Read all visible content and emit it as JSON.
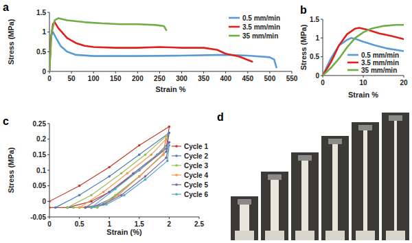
{
  "chart_data": [
    {
      "type": "line",
      "title": "a",
      "x_label": "Strain %",
      "y_label": "Stress (MPa)",
      "xlim": [
        0,
        550
      ],
      "ylim": [
        0,
        1.5
      ],
      "xticks": [
        0,
        50,
        100,
        150,
        200,
        250,
        300,
        350,
        400,
        450,
        500,
        550
      ],
      "yticks": [
        0,
        0.5,
        1,
        1.5
      ],
      "legend": "upper right",
      "series": [
        {
          "name": "0.5 mm/min",
          "color": "#5b9bd5",
          "x": [
            0,
            3,
            8,
            15,
            25,
            40,
            60,
            100,
            200,
            300,
            400,
            450,
            500,
            510,
            515
          ],
          "values": [
            0,
            0.9,
            1.0,
            0.85,
            0.65,
            0.5,
            0.42,
            0.39,
            0.39,
            0.4,
            0.42,
            0.4,
            0.36,
            0.3,
            0.1
          ]
        },
        {
          "name": "3.5 mm/min",
          "color": "#e0201b",
          "x": [
            0,
            3,
            8,
            12,
            20,
            40,
            60,
            80,
            100,
            150,
            200,
            250,
            300,
            350,
            380,
            400,
            430,
            460
          ],
          "values": [
            0,
            0.8,
            1.2,
            1.25,
            1.1,
            0.85,
            0.72,
            0.65,
            0.62,
            0.6,
            0.6,
            0.62,
            0.6,
            0.6,
            0.55,
            0.45,
            0.38,
            0.25
          ]
        },
        {
          "name": "35 mm/min",
          "color": "#70ad47",
          "x": [
            0,
            5,
            12,
            20,
            40,
            80,
            120,
            160,
            200,
            240,
            260,
            265
          ],
          "values": [
            0,
            1.0,
            1.3,
            1.35,
            1.3,
            1.25,
            1.22,
            1.2,
            1.2,
            1.18,
            1.15,
            1.05
          ]
        }
      ]
    },
    {
      "type": "line",
      "title": "b",
      "x_label": "Strain %",
      "y_label": "Stress (MPa)",
      "xlim": [
        0,
        20
      ],
      "ylim": [
        0,
        1.5
      ],
      "xticks": [
        0,
        10,
        20
      ],
      "yticks": [
        0,
        0.5,
        1,
        1.5
      ],
      "legend": "lower right",
      "series": [
        {
          "name": "0.5 mm/min",
          "color": "#5b9bd5",
          "x": [
            0,
            2,
            4,
            6,
            7,
            8,
            10,
            13,
            16,
            20
          ],
          "values": [
            0,
            0.45,
            0.8,
            0.95,
            1.0,
            0.98,
            0.9,
            0.8,
            0.72,
            0.65
          ]
        },
        {
          "name": "3.5 mm/min",
          "color": "#e0201b",
          "x": [
            0,
            2,
            4,
            6,
            8,
            9,
            11,
            14,
            17,
            20
          ],
          "values": [
            0,
            0.35,
            0.8,
            1.1,
            1.25,
            1.27,
            1.22,
            1.12,
            1.05,
            0.97
          ]
        },
        {
          "name": "35 mm/min",
          "color": "#70ad47",
          "x": [
            0,
            2,
            4,
            6,
            8,
            10,
            12,
            15,
            18,
            20
          ],
          "values": [
            0,
            0.2,
            0.45,
            0.75,
            1.0,
            1.15,
            1.25,
            1.32,
            1.35,
            1.35
          ]
        }
      ]
    },
    {
      "type": "line",
      "title": "c",
      "x_label": "Strain (%)",
      "y_label": "Stress (MPa)",
      "xlim": [
        0,
        2.5
      ],
      "ylim": [
        -0.05,
        0.25
      ],
      "xticks": [
        0,
        0.5,
        1,
        1.5,
        2,
        2.5
      ],
      "yticks": [
        -0.05,
        0,
        0.05,
        0.1,
        0.15,
        0.2,
        0.25
      ],
      "legend": "center right",
      "marker": "circle",
      "series": [
        {
          "name": "Cycle 1",
          "color": "#c0392b",
          "x": [
            0,
            0.5,
            1,
            1.5,
            2,
            1.95,
            1.5,
            1,
            0.7,
            0.3,
            0
          ],
          "values": [
            0,
            0.05,
            0.11,
            0.18,
            0.24,
            0.17,
            0.1,
            0.03,
            0,
            -0.02,
            -0.02
          ]
        },
        {
          "name": "Cycle 2",
          "color": "#4a7ebb",
          "x": [
            0.1,
            0.5,
            1,
            1.5,
            2,
            1.95,
            1.5,
            1.05,
            0.7,
            0.3
          ],
          "values": [
            -0.02,
            0.02,
            0.08,
            0.15,
            0.22,
            0.16,
            0.08,
            0.01,
            -0.02,
            -0.02
          ]
        },
        {
          "name": "Cycle 3",
          "color": "#9bbb59",
          "x": [
            0.3,
            0.7,
            1.2,
            1.6,
            1.95,
            1.9,
            1.5,
            1.1,
            0.8,
            0.4
          ],
          "values": [
            -0.02,
            0.02,
            0.09,
            0.15,
            0.21,
            0.15,
            0.08,
            0.02,
            -0.02,
            -0.02
          ]
        },
        {
          "name": "Cycle 4",
          "color": "#f79646",
          "x": [
            0.5,
            0.9,
            1.3,
            1.7,
            1.95,
            1.9,
            1.5,
            1.15,
            0.9,
            0.5
          ],
          "values": [
            -0.02,
            0.03,
            0.09,
            0.15,
            0.2,
            0.15,
            0.08,
            0.02,
            -0.01,
            -0.02
          ]
        },
        {
          "name": "Cycle 5",
          "color": "#7f60a0",
          "x": [
            0.6,
            1,
            1.4,
            1.8,
            2,
            1.95,
            1.6,
            1.2,
            0.9,
            0.6
          ],
          "values": [
            -0.02,
            0.03,
            0.09,
            0.15,
            0.19,
            0.14,
            0.08,
            0.02,
            -0.01,
            -0.02
          ]
        },
        {
          "name": "Cycle 6",
          "color": "#4bacc6",
          "x": [
            0.7,
            1.1,
            1.5,
            1.8,
            2,
            1.97,
            1.6,
            1.25,
            0.95,
            0.7
          ],
          "values": [
            -0.02,
            0.04,
            0.1,
            0.15,
            0.18,
            0.13,
            0.07,
            0.02,
            -0.01,
            -0.02
          ]
        }
      ]
    }
  ],
  "photo_panel": {
    "title": "d"
  }
}
